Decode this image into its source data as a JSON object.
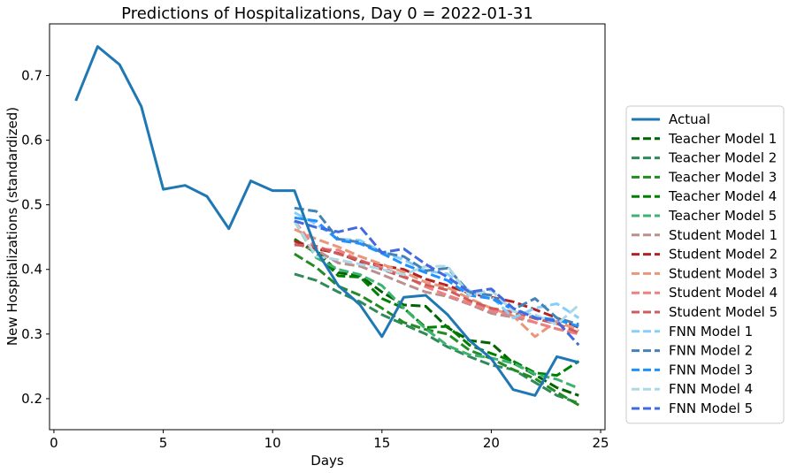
{
  "chart_data": {
    "type": "line",
    "title": "Predictions of Hospitalizations, Day 0 = 2022-01-31",
    "xlabel": "Days",
    "ylabel": "New Hospitalizations (standardized)",
    "xlim": [
      -0.2,
      25.2
    ],
    "ylim": [
      0.152,
      0.78
    ],
    "xticks": [
      0,
      5,
      10,
      15,
      20,
      25
    ],
    "yticks": [
      0.2,
      0.3,
      0.4,
      0.5,
      0.6,
      0.7
    ],
    "grid": false,
    "legend_position": "right",
    "series": [
      {
        "name": "Actual",
        "color": "#1f77b4",
        "dash": "solid",
        "x": [
          1,
          2,
          3,
          4,
          5,
          6,
          7,
          8,
          9,
          10,
          11,
          12,
          13,
          14,
          15,
          16,
          17,
          18,
          19,
          20,
          21,
          22,
          23,
          24
        ],
        "y": [
          0.661,
          0.745,
          0.717,
          0.652,
          0.524,
          0.53,
          0.513,
          0.463,
          0.537,
          0.522,
          0.522,
          0.43,
          0.375,
          0.345,
          0.296,
          0.357,
          0.36,
          0.33,
          0.29,
          0.262,
          0.214,
          0.205,
          0.265,
          0.256
        ]
      },
      {
        "name": "Teacher Model 1",
        "color": "#006400",
        "dash": "dashed",
        "x": [
          11,
          12,
          13,
          14,
          15,
          16,
          17,
          18,
          19,
          20,
          21,
          22,
          23,
          24
        ],
        "y": [
          0.445,
          0.43,
          0.395,
          0.39,
          0.365,
          0.345,
          0.343,
          0.31,
          0.29,
          0.286,
          0.255,
          0.237,
          0.217,
          0.205
        ]
      },
      {
        "name": "Teacher Model 2",
        "color": "#2e8b57",
        "dash": "dashed",
        "x": [
          11,
          12,
          13,
          14,
          15,
          16,
          17,
          18,
          19,
          20,
          21,
          22,
          23,
          24
        ],
        "y": [
          0.393,
          0.383,
          0.365,
          0.35,
          0.33,
          0.315,
          0.3,
          0.28,
          0.265,
          0.252,
          0.245,
          0.225,
          0.205,
          0.193
        ]
      },
      {
        "name": "Teacher Model 3",
        "color": "#228b22",
        "dash": "dashed",
        "x": [
          11,
          12,
          13,
          14,
          15,
          16,
          17,
          18,
          19,
          20,
          21,
          22,
          23,
          24
        ],
        "y": [
          0.424,
          0.403,
          0.374,
          0.36,
          0.34,
          0.318,
          0.307,
          0.3,
          0.275,
          0.262,
          0.245,
          0.231,
          0.21,
          0.19
        ]
      },
      {
        "name": "Teacher Model 4",
        "color": "#008000",
        "dash": "dashed",
        "x": [
          11,
          12,
          13,
          14,
          15,
          16,
          17,
          18,
          19,
          20,
          21,
          22,
          23,
          24
        ],
        "y": [
          0.447,
          0.425,
          0.39,
          0.388,
          0.355,
          0.34,
          0.31,
          0.312,
          0.283,
          0.27,
          0.258,
          0.24,
          0.236,
          0.258
        ]
      },
      {
        "name": "Teacher Model 5",
        "color": "#3cb371",
        "dash": "dashed",
        "x": [
          11,
          12,
          13,
          14,
          15,
          16,
          17,
          18,
          19,
          20,
          21,
          22,
          23,
          24
        ],
        "y": [
          0.475,
          0.418,
          0.4,
          0.392,
          0.375,
          0.34,
          0.308,
          0.282,
          0.268,
          0.263,
          0.255,
          0.238,
          0.23,
          0.216
        ]
      },
      {
        "name": "Student Model 1",
        "color": "#bc8f8f",
        "dash": "dashed",
        "x": [
          11,
          12,
          13,
          14,
          15,
          16,
          17,
          18,
          19,
          20,
          21,
          22,
          23,
          24
        ],
        "y": [
          0.44,
          0.43,
          0.41,
          0.405,
          0.392,
          0.378,
          0.365,
          0.358,
          0.346,
          0.332,
          0.326,
          0.318,
          0.308,
          0.3
        ]
      },
      {
        "name": "Student Model 2",
        "color": "#b22222",
        "dash": "dashed",
        "x": [
          11,
          12,
          13,
          14,
          15,
          16,
          17,
          18,
          19,
          20,
          21,
          22,
          23,
          24
        ],
        "y": [
          0.444,
          0.432,
          0.425,
          0.412,
          0.406,
          0.4,
          0.385,
          0.375,
          0.363,
          0.357,
          0.35,
          0.338,
          0.325,
          0.31
        ]
      },
      {
        "name": "Student Model 3",
        "color": "#e9967a",
        "dash": "dashed",
        "x": [
          11,
          12,
          13,
          14,
          15,
          16,
          17,
          18,
          19,
          20,
          21,
          22,
          23,
          24
        ],
        "y": [
          0.462,
          0.447,
          0.435,
          0.42,
          0.408,
          0.396,
          0.38,
          0.372,
          0.355,
          0.34,
          0.328,
          0.296,
          0.32,
          0.305
        ]
      },
      {
        "name": "Student Model 4",
        "color": "#f08080",
        "dash": "dashed",
        "x": [
          11,
          12,
          13,
          14,
          15,
          16,
          17,
          18,
          19,
          20,
          21,
          22,
          23,
          24
        ],
        "y": [
          0.475,
          0.432,
          0.43,
          0.414,
          0.403,
          0.39,
          0.373,
          0.36,
          0.348,
          0.336,
          0.33,
          0.318,
          0.308,
          0.3
        ]
      },
      {
        "name": "Student Model 5",
        "color": "#cd5c5c",
        "dash": "dashed",
        "x": [
          11,
          12,
          13,
          14,
          15,
          16,
          17,
          18,
          19,
          20,
          21,
          22,
          23,
          24
        ],
        "y": [
          0.438,
          0.436,
          0.424,
          0.414,
          0.4,
          0.388,
          0.376,
          0.368,
          0.352,
          0.34,
          0.334,
          0.324,
          0.316,
          0.302
        ]
      },
      {
        "name": "FNN Model 1",
        "color": "#87cefa",
        "dash": "dashed",
        "x": [
          11,
          12,
          13,
          14,
          15,
          16,
          17,
          18,
          19,
          20,
          21,
          22,
          23,
          24
        ],
        "y": [
          0.488,
          0.47,
          0.447,
          0.445,
          0.427,
          0.415,
          0.398,
          0.393,
          0.367,
          0.358,
          0.325,
          0.34,
          0.347,
          0.325
        ]
      },
      {
        "name": "FNN Model 2",
        "color": "#4682b4",
        "dash": "dashed",
        "x": [
          11,
          12,
          13,
          14,
          15,
          16,
          17,
          18,
          19,
          20,
          21,
          22,
          23,
          24
        ],
        "y": [
          0.495,
          0.49,
          0.447,
          0.442,
          0.426,
          0.42,
          0.398,
          0.402,
          0.365,
          0.36,
          0.338,
          0.355,
          0.325,
          0.315
        ]
      },
      {
        "name": "FNN Model 3",
        "color": "#1e90ff",
        "dash": "dashed",
        "x": [
          11,
          12,
          13,
          14,
          15,
          16,
          17,
          18,
          19,
          20,
          21,
          22,
          23,
          24
        ],
        "y": [
          0.48,
          0.475,
          0.445,
          0.44,
          0.425,
          0.408,
          0.395,
          0.383,
          0.36,
          0.355,
          0.338,
          0.326,
          0.322,
          0.312
        ]
      },
      {
        "name": "FNN Model 4",
        "color": "#add8e6",
        "dash": "dashed",
        "x": [
          11,
          12,
          13,
          14,
          15,
          16,
          17,
          18,
          19,
          20,
          21,
          22,
          23,
          24
        ],
        "y": [
          0.475,
          0.42,
          0.415,
          0.408,
          0.4,
          0.392,
          0.405,
          0.405,
          0.36,
          0.368,
          0.335,
          0.33,
          0.315,
          0.345
        ]
      },
      {
        "name": "FNN Model 5",
        "color": "#4169e1",
        "dash": "dashed",
        "x": [
          11,
          12,
          13,
          14,
          15,
          16,
          17,
          18,
          19,
          20,
          21,
          22,
          23,
          24
        ],
        "y": [
          0.475,
          0.465,
          0.458,
          0.466,
          0.426,
          0.432,
          0.408,
          0.388,
          0.365,
          0.37,
          0.34,
          0.325,
          0.32,
          0.283
        ]
      }
    ]
  }
}
